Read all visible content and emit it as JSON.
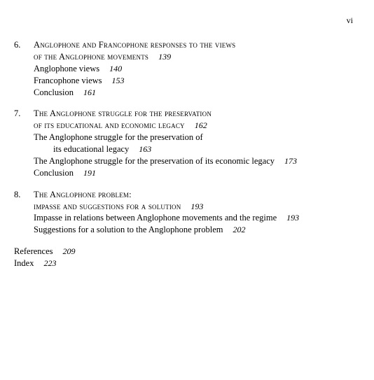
{
  "page_number": "vi",
  "chapters": [
    {
      "num": "6.",
      "title_line1": "Anglophone and Francophone responses to the views",
      "title_line2": "of the Anglophone movements",
      "title_page": "139",
      "subs": [
        {
          "label": "Anglophone views",
          "page": "140"
        },
        {
          "label": "Francophone views",
          "page": "153"
        },
        {
          "label": "Conclusion",
          "page": "161"
        }
      ]
    },
    {
      "num": "7.",
      "title_line1": "The Anglophone struggle for the preservation",
      "title_line2": "of its educational and economic legacy",
      "title_page": "162",
      "subs": [
        {
          "label_line1": "The Anglophone struggle for the preservation of",
          "label_line2": "its educational legacy",
          "page": "163"
        },
        {
          "label": "The Anglophone struggle for the preservation of its economic legacy",
          "page": "173"
        },
        {
          "label": "Conclusion",
          "page": "191"
        }
      ]
    },
    {
      "num": "8.",
      "title_line1": "The Anglophone problem:",
      "title_line2": "impasse and suggestions for a solution",
      "title_page": "193",
      "subs": [
        {
          "label": "Impasse in relations between Anglophone movements and the regime",
          "page": "193"
        },
        {
          "label": "Suggestions for a solution to the Anglophone problem",
          "page": "202"
        }
      ]
    }
  ],
  "backmatter": [
    {
      "label": "References",
      "page": "209"
    },
    {
      "label": "Index",
      "page": "223"
    }
  ]
}
